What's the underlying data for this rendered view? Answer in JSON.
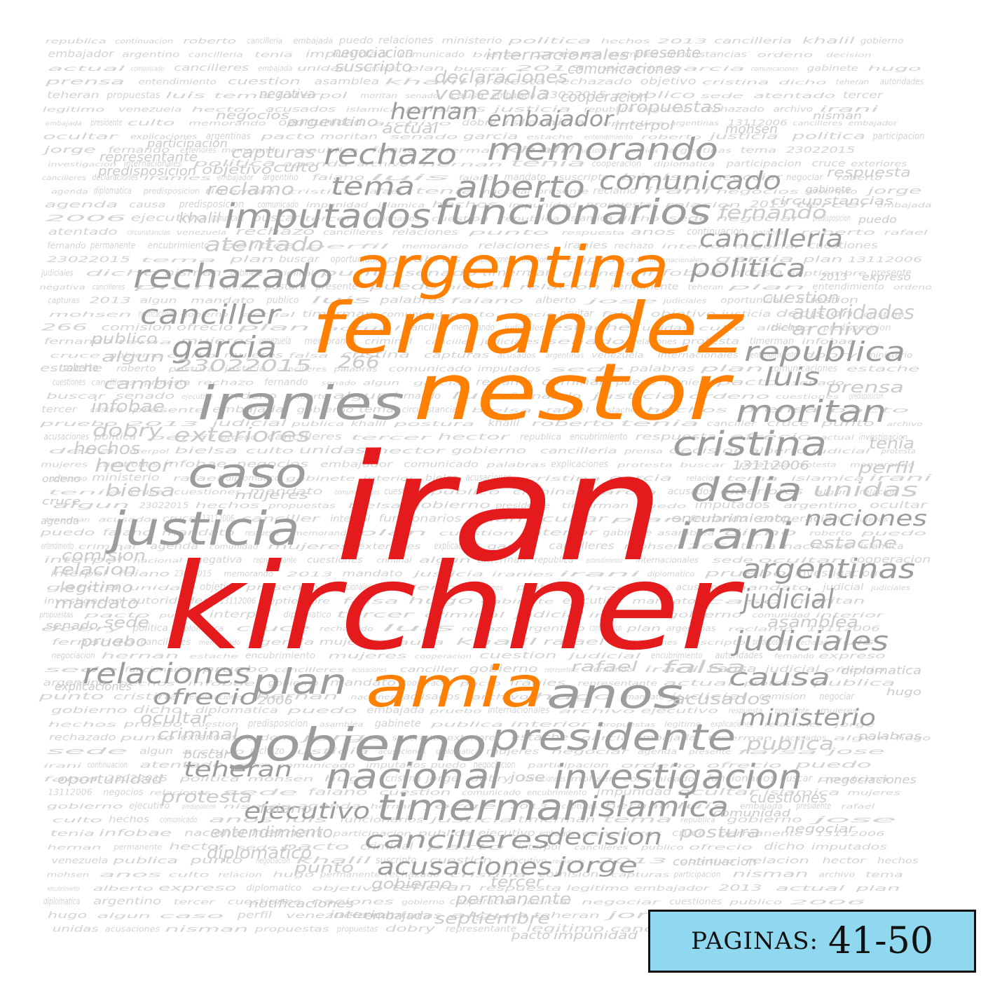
{
  "colors": {
    "background": "#ffffff",
    "red": "#e41a1c",
    "orange": "#ff7f00",
    "gray": "#9c9c9c",
    "lightgray": "#c8c8c8",
    "badge_bg": "#8fd8ef",
    "badge_border": "#111111"
  },
  "badge": {
    "label": "PAGINAS:",
    "value": "41-50"
  },
  "cloud": {
    "primary_words": [
      {
        "text": "iran",
        "color": "red"
      },
      {
        "text": "kirchner",
        "color": "red"
      },
      {
        "text": "nestor",
        "color": "orange"
      },
      {
        "text": "fernandez",
        "color": "orange"
      },
      {
        "text": "argentina",
        "color": "orange"
      },
      {
        "text": "amia",
        "color": "orange"
      }
    ],
    "secondary_words": [
      "memorando",
      "rechazo",
      "alberto",
      "comunicado",
      "tema",
      "imputados",
      "funcionarios",
      "rechazado",
      "canciller",
      "garcia",
      "iranies",
      "caso",
      "justicia",
      "gobierno",
      "presidente",
      "plan",
      "anos",
      "nacional",
      "investigacion",
      "timerman",
      "islamica",
      "cancilleres",
      "decision",
      "acusaciones",
      "jorge",
      "ejecutivo",
      "teheran",
      "relaciones",
      "ofrecio",
      "cristina",
      "delia",
      "irani",
      "moritan",
      "politica",
      "cancilleria",
      "republica",
      "luis",
      "argentinas",
      "judicial",
      "judiciales",
      "causa",
      "ministerio",
      "naciones",
      "unidas",
      "autoridades",
      "archivo",
      "hernan",
      "embajador",
      "venezuela",
      "declaraciones",
      "fernando",
      "atentado",
      "reclamo",
      "capturas",
      "dobry",
      "exteriores",
      "hector",
      "bielsa",
      "infobae",
      "cambio",
      "publico",
      "falsa",
      "rafael",
      "publica",
      "asamblea",
      "estache",
      "prensa",
      "perfil",
      "diplomatico",
      "permanente",
      "septiembre",
      "embajada",
      "entendimiento",
      "protesta",
      "criminal",
      "ocultar",
      "acusados",
      "postura",
      "cuestiones",
      "cuestion",
      "interpol",
      "cooperacion",
      "propuestas",
      "negociacion",
      "suscripto",
      "internacionales",
      "presente",
      "comunicaciones",
      "respuesta",
      "gobierno",
      "tercer",
      "punto",
      "faiano",
      "jose",
      "mohsen",
      "khalil",
      "objetivo",
      "culto",
      "predisposicion",
      "representante",
      "participacion",
      "comision",
      "relacion",
      "legitimo",
      "mandato",
      "sede",
      "senado",
      "pruebo",
      "explicaciones",
      "oportunidad",
      "buscar",
      "tenia",
      "hechos",
      "algun",
      "roberto",
      "ordeno",
      "agenda",
      "mujeres",
      "diplomatica",
      "notificaciones",
      "negocios",
      "actual",
      "argentino",
      "negativa",
      "encubrimiento",
      "impunidad",
      "pacto",
      "circunstancias",
      "continuacion",
      "interior",
      "negociaciones",
      "hugo",
      "gabinete",
      "comunidad",
      "palabras",
      "2013",
      "2006",
      "13112006",
      "23022015",
      "266",
      "dicho",
      "puedo",
      "negociar",
      "nisman",
      "cruce",
      "expreso"
    ]
  }
}
